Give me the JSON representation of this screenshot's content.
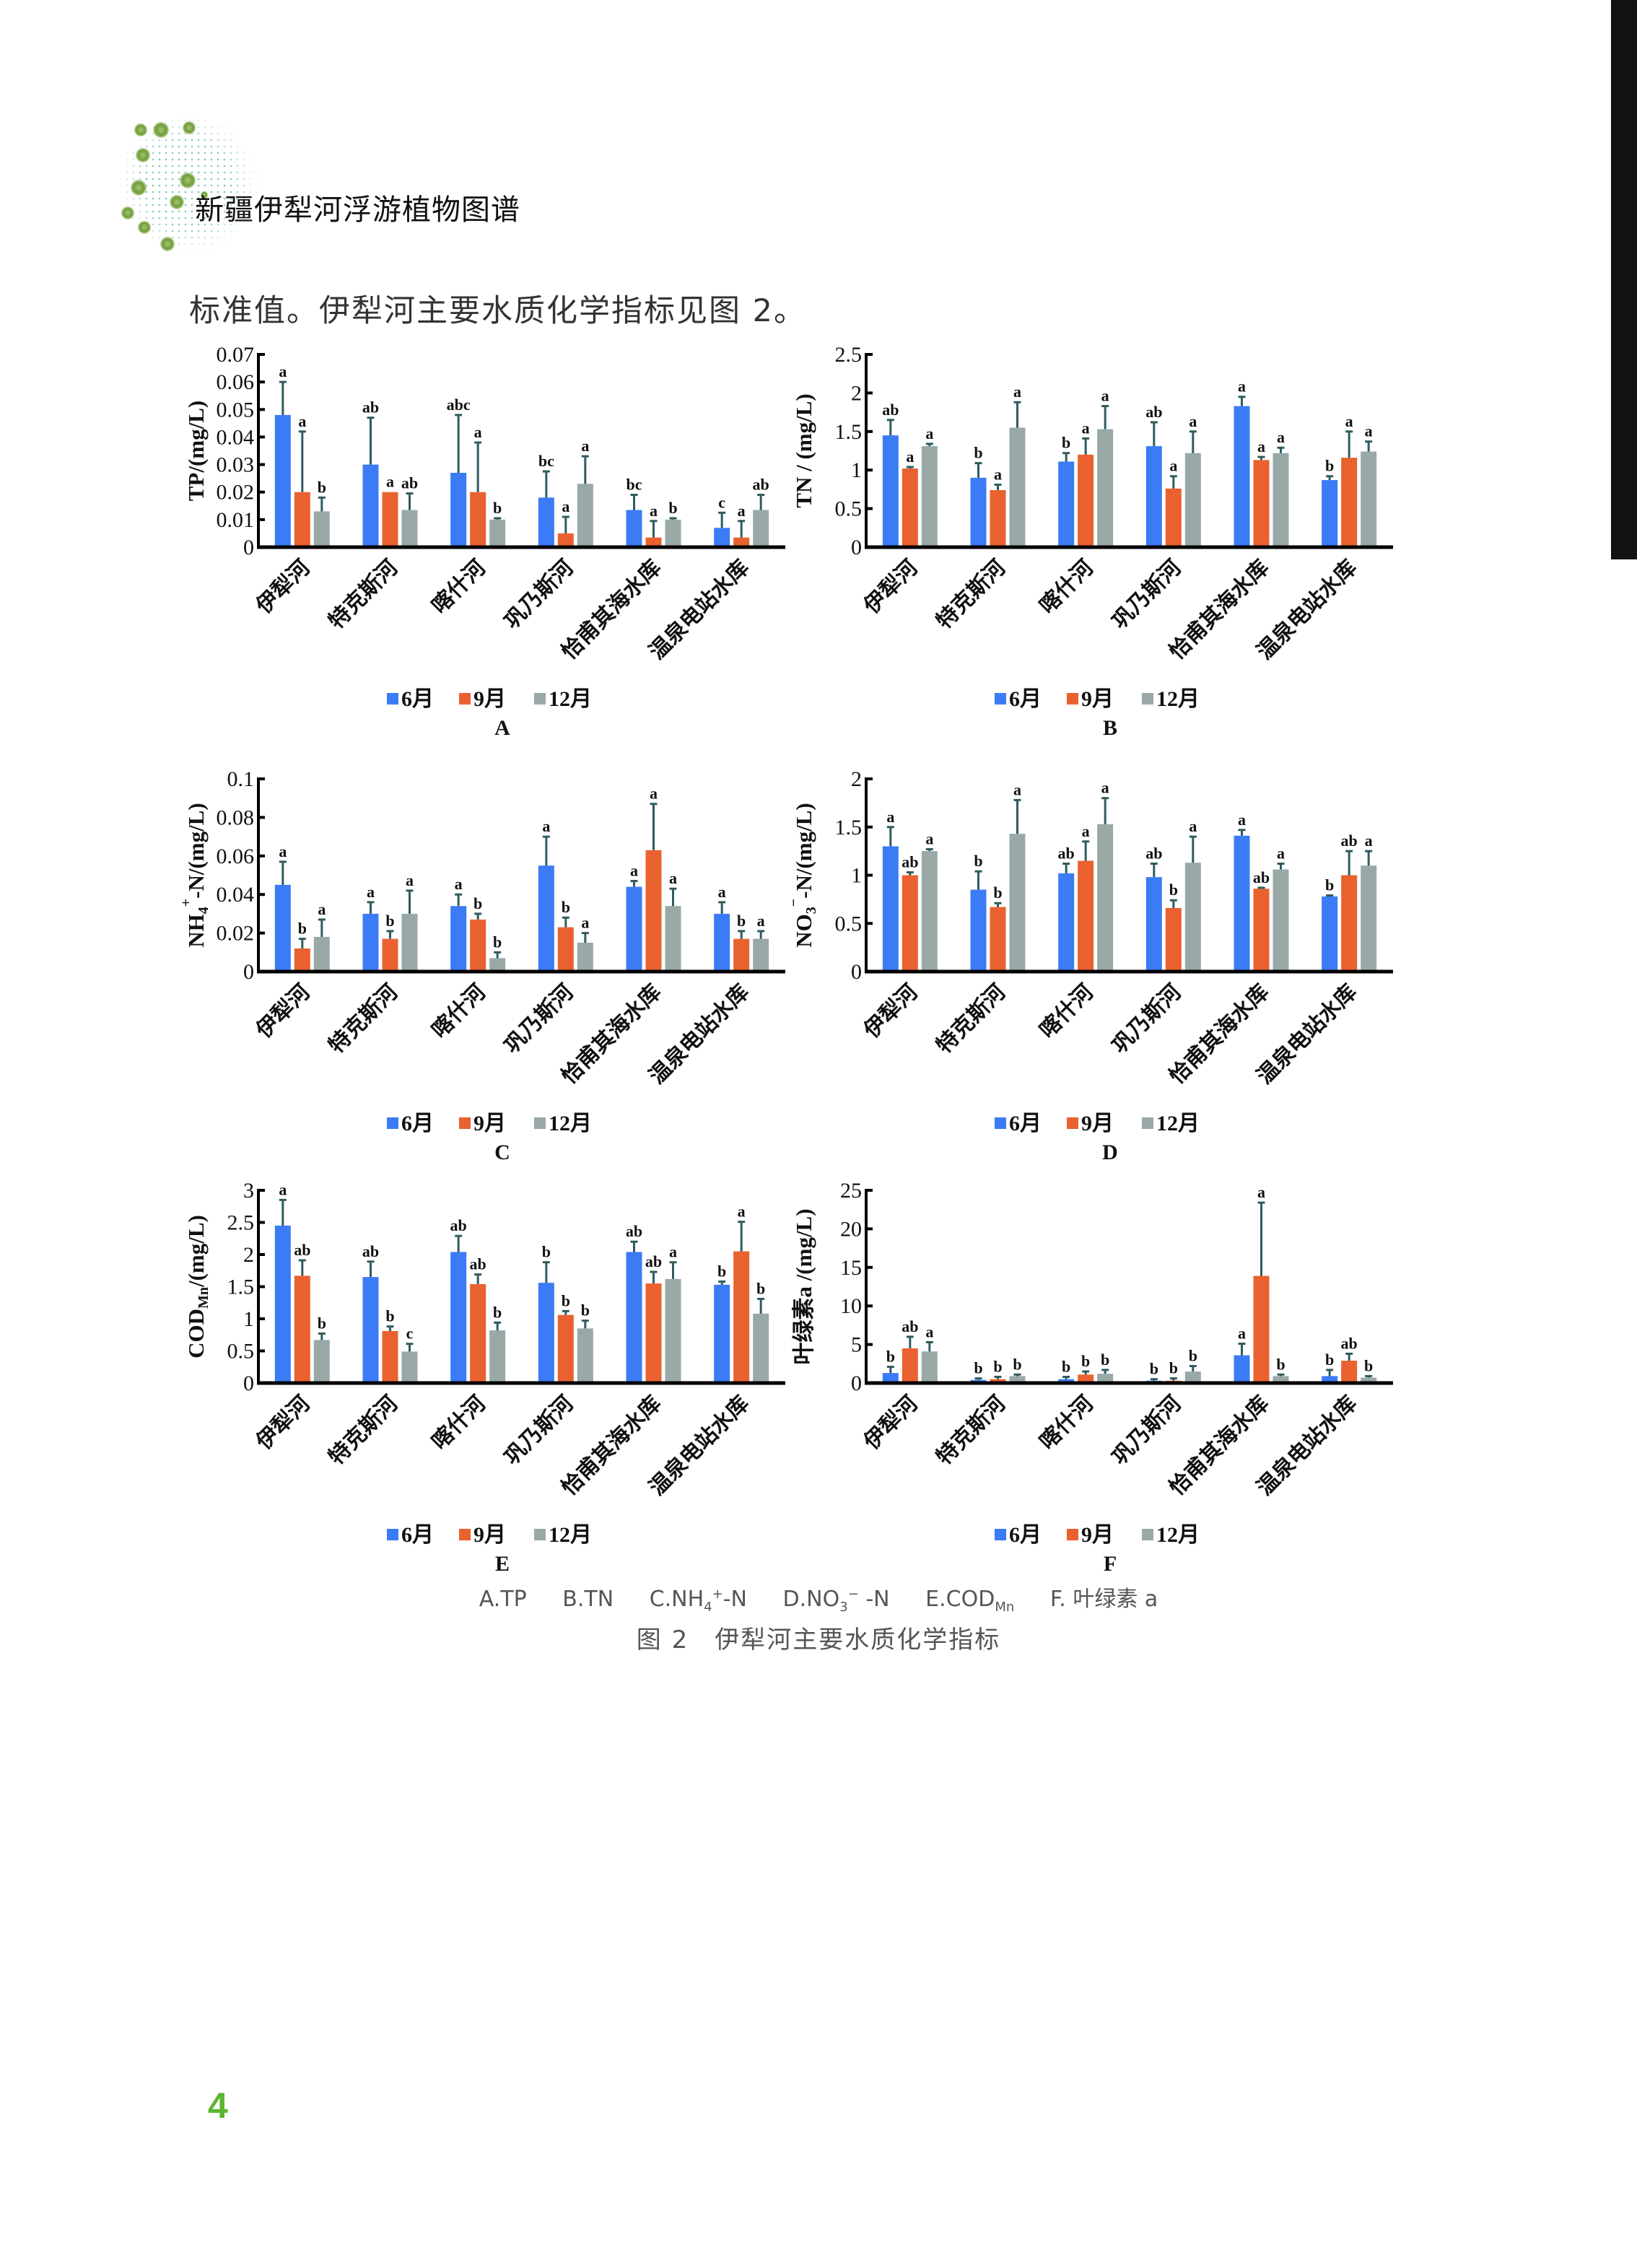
{
  "header": {
    "title": "新疆伊犁河浮游植物图谱"
  },
  "body_text": "标准值。伊犁河主要水质化学指标见图 2。",
  "colors": {
    "jun": "#3b7bf6",
    "sep": "#ea6130",
    "dec": "#99a9a8",
    "error_bar": "#2f5b5e",
    "page_number": "#5cb531"
  },
  "chart_data": [
    {
      "type": "bar",
      "panel": "A",
      "ylabel": [
        {
          "t": "TP/(mg/L)"
        }
      ],
      "ylim": [
        0,
        0.07
      ],
      "yticks": [
        0,
        0.01,
        0.02,
        0.03,
        0.04,
        0.05,
        0.06,
        0.07
      ],
      "ytick_labels": [
        "0",
        "0.01",
        "0.02",
        "0.03",
        "0.04",
        "0.05",
        "0.06",
        "0.07"
      ],
      "categories": [
        "伊犁河",
        "特克斯河",
        "喀什河",
        "巩乃斯河",
        "恰甫其海水库",
        "温泉电站水库"
      ],
      "series": [
        {
          "name": "6月",
          "values": [
            0.048,
            0.03,
            0.027,
            0.018,
            0.0135,
            0.007
          ],
          "errors": [
            0.012,
            0.017,
            0.021,
            0.0095,
            0.0055,
            0.0055
          ],
          "letters": [
            "a",
            "ab",
            "abc",
            "bc",
            "bc",
            "c"
          ]
        },
        {
          "name": "9月",
          "values": [
            0.02,
            0.02,
            0.02,
            0.005,
            0.0035,
            0.0035
          ],
          "errors": [
            0.022,
            0,
            0.018,
            0.006,
            0.006,
            0.006
          ],
          "letters": [
            "a",
            "a",
            "a",
            "a",
            "a",
            "a"
          ]
        },
        {
          "name": "12月",
          "values": [
            0.013,
            0.0135,
            0.01,
            0.023,
            0.01,
            0.0135
          ],
          "errors": [
            0.005,
            0.006,
            0.0005,
            0.01,
            0.0005,
            0.0055
          ],
          "letters": [
            "b",
            "ab",
            "b",
            "a",
            "b",
            "ab"
          ]
        }
      ]
    },
    {
      "type": "bar",
      "panel": "B",
      "ylabel": [
        {
          "t": "TN / (mg/L)"
        }
      ],
      "ylim": [
        0,
        2.5
      ],
      "yticks": [
        0,
        0.5,
        1,
        1.5,
        2,
        2.5
      ],
      "ytick_labels": [
        "0",
        "0.5",
        "1",
        "1.5",
        "2",
        "2.5"
      ],
      "categories": [
        "伊犁河",
        "特克斯河",
        "喀什河",
        "巩乃斯河",
        "恰甫其海水库",
        "温泉电站水库"
      ],
      "series": [
        {
          "name": "6月",
          "values": [
            1.45,
            0.9,
            1.11,
            1.31,
            1.83,
            0.87
          ],
          "errors": [
            0.2,
            0.19,
            0.11,
            0.31,
            0.12,
            0.05
          ],
          "letters": [
            "ab",
            "b",
            "b",
            "ab",
            "a",
            "b"
          ]
        },
        {
          "name": "9月",
          "values": [
            1.02,
            0.74,
            1.2,
            0.76,
            1.13,
            1.16
          ],
          "errors": [
            0.02,
            0.07,
            0.21,
            0.16,
            0.04,
            0.34
          ],
          "letters": [
            "a",
            "a",
            "a",
            "a",
            "a",
            "a"
          ]
        },
        {
          "name": "12月",
          "values": [
            1.31,
            1.55,
            1.53,
            1.22,
            1.22,
            1.24
          ],
          "errors": [
            0.03,
            0.33,
            0.3,
            0.28,
            0.07,
            0.13
          ],
          "letters": [
            "a",
            "a",
            "a",
            "a",
            "a",
            "a"
          ]
        }
      ]
    },
    {
      "type": "bar",
      "panel": "C",
      "ylabel": [
        {
          "t": "NH"
        },
        {
          "t": "4",
          "sub": true
        },
        {
          "t": "+",
          "sup": true
        },
        {
          "t": "-N/(mg/L)"
        }
      ],
      "ylim": [
        0,
        0.1
      ],
      "yticks": [
        0,
        0.02,
        0.04,
        0.06,
        0.08,
        0.1
      ],
      "ytick_labels": [
        "0",
        "0.02",
        "0.04",
        "0.06",
        "0.08",
        "0.1"
      ],
      "categories": [
        "伊犁河",
        "特克斯河",
        "喀什河",
        "巩乃斯河",
        "恰甫其海水库",
        "温泉电站水库"
      ],
      "series": [
        {
          "name": "6月",
          "values": [
            0.045,
            0.03,
            0.034,
            0.055,
            0.044,
            0.03
          ],
          "errors": [
            0.012,
            0.006,
            0.006,
            0.015,
            0.003,
            0.006
          ],
          "letters": [
            "a",
            "a",
            "a",
            "a",
            "a",
            "a"
          ]
        },
        {
          "name": "9月",
          "values": [
            0.012,
            0.017,
            0.027,
            0.023,
            0.063,
            0.017
          ],
          "errors": [
            0.005,
            0.004,
            0.003,
            0.005,
            0.024,
            0.004
          ],
          "letters": [
            "b",
            "b",
            "b",
            "b",
            "a",
            "b"
          ]
        },
        {
          "name": "12月",
          "values": [
            0.018,
            0.03,
            0.007,
            0.015,
            0.034,
            0.017
          ],
          "errors": [
            0.009,
            0.012,
            0.003,
            0.005,
            0.009,
            0.004
          ],
          "letters": [
            "a",
            "a",
            "b",
            "a",
            "a",
            "a"
          ]
        }
      ]
    },
    {
      "type": "bar",
      "panel": "D",
      "ylabel": [
        {
          "t": "NO"
        },
        {
          "t": "3",
          "sub": true
        },
        {
          "t": "−",
          "sup": true
        },
        {
          "t": "-N/(mg/L)"
        }
      ],
      "ylim": [
        0,
        2
      ],
      "yticks": [
        0,
        0.5,
        1,
        1.5,
        2
      ],
      "ytick_labels": [
        "0",
        "0.5",
        "1",
        "1.5",
        "2"
      ],
      "categories": [
        "伊犁河",
        "特克斯河",
        "喀什河",
        "巩乃斯河",
        "恰甫其海水库",
        "温泉电站水库"
      ],
      "series": [
        {
          "name": "6月",
          "values": [
            1.3,
            0.85,
            1.02,
            0.98,
            1.41,
            0.78
          ],
          "errors": [
            0.2,
            0.19,
            0.1,
            0.14,
            0.06,
            0.01
          ],
          "letters": [
            "a",
            "b",
            "ab",
            "ab",
            "a",
            "b"
          ]
        },
        {
          "name": "9月",
          "values": [
            1.0,
            0.67,
            1.15,
            0.66,
            0.86,
            1.0
          ],
          "errors": [
            0.03,
            0.04,
            0.2,
            0.08,
            0.01,
            0.25
          ],
          "letters": [
            "ab",
            "b",
            "a",
            "b",
            "ab",
            "ab"
          ]
        },
        {
          "name": "12月",
          "values": [
            1.25,
            1.43,
            1.53,
            1.13,
            1.06,
            1.1
          ],
          "errors": [
            0.02,
            0.35,
            0.27,
            0.27,
            0.06,
            0.15
          ],
          "letters": [
            "a",
            "a",
            "a",
            "a",
            "a",
            "a"
          ]
        }
      ]
    },
    {
      "type": "bar",
      "panel": "E",
      "ylabel": [
        {
          "t": "COD"
        },
        {
          "t": "Mn",
          "sub": true
        },
        {
          "t": "/(mg/L)"
        }
      ],
      "ylim": [
        0,
        3
      ],
      "yticks": [
        0,
        0.5,
        1,
        1.5,
        2,
        2.5,
        3
      ],
      "ytick_labels": [
        "0",
        "0.5",
        "1",
        "1.5",
        "2",
        "2.5",
        "3"
      ],
      "categories": [
        "伊犁河",
        "特克斯河",
        "喀什河",
        "巩乃斯河",
        "恰甫其海水库",
        "温泉电站水库"
      ],
      "series": [
        {
          "name": "6月",
          "values": [
            2.45,
            1.65,
            2.04,
            1.56,
            2.04,
            1.53
          ],
          "errors": [
            0.4,
            0.24,
            0.25,
            0.32,
            0.16,
            0.05
          ],
          "letters": [
            "a",
            "ab",
            "ab",
            "b",
            "ab",
            "b"
          ]
        },
        {
          "name": "9月",
          "values": [
            1.67,
            0.81,
            1.54,
            1.06,
            1.55,
            2.05
          ],
          "errors": [
            0.24,
            0.07,
            0.15,
            0.06,
            0.18,
            0.46
          ],
          "letters": [
            "ab",
            "b",
            "ab",
            "b",
            "ab",
            "a"
          ]
        },
        {
          "name": "12月",
          "values": [
            0.67,
            0.49,
            0.82,
            0.85,
            1.62,
            1.08
          ],
          "errors": [
            0.1,
            0.12,
            0.12,
            0.12,
            0.26,
            0.23
          ],
          "letters": [
            "b",
            "c",
            "b",
            "b",
            "a",
            "b"
          ]
        }
      ]
    },
    {
      "type": "bar",
      "panel": "F",
      "ylabel": [
        {
          "t": "叶绿素a /(mg/L)"
        }
      ],
      "ylim": [
        0,
        25
      ],
      "yticks": [
        0,
        5,
        10,
        15,
        20,
        25
      ],
      "ytick_labels": [
        "0",
        "5",
        "10",
        "15",
        "20",
        "25"
      ],
      "categories": [
        "伊犁河",
        "特克斯河",
        "喀什河",
        "巩乃斯河",
        "恰甫其海水库",
        "温泉电站水库"
      ],
      "series": [
        {
          "name": "6月",
          "values": [
            1.3,
            0.4,
            0.5,
            0.3,
            3.6,
            0.9
          ],
          "errors": [
            0.8,
            0.2,
            0.3,
            0.2,
            1.5,
            0.8
          ],
          "letters": [
            "b",
            "b",
            "b",
            "b",
            "a",
            "b"
          ]
        },
        {
          "name": "9月",
          "values": [
            4.5,
            0.5,
            1.1,
            0.3,
            13.9,
            2.9
          ],
          "errors": [
            1.5,
            0.3,
            0.4,
            0.3,
            9.5,
            0.9
          ],
          "letters": [
            "ab",
            "b",
            "b",
            "b",
            "a",
            "ab"
          ]
        },
        {
          "name": "12月",
          "values": [
            4.1,
            0.9,
            1.2,
            1.5,
            0.9,
            0.7
          ],
          "errors": [
            1.2,
            0.2,
            0.5,
            0.7,
            0.2,
            0.2
          ],
          "letters": [
            "a",
            "b",
            "b",
            "b",
            "b",
            "b"
          ]
        }
      ]
    }
  ],
  "caption": {
    "panels": [
      {
        "pre": "A.TP"
      },
      {
        "pre": "B.TN"
      },
      {
        "pre": "C.NH",
        "sub": "4",
        "sup": "+",
        "post": "-N"
      },
      {
        "pre": "D.NO",
        "sub": "3",
        "sup": "−",
        "post": " -N"
      },
      {
        "pre": "E.COD",
        "sub": "Mn"
      },
      {
        "pre": "F. 叶绿素 a"
      }
    ],
    "title": "图 2　伊犁河主要水质化学指标"
  },
  "page_number": "4"
}
